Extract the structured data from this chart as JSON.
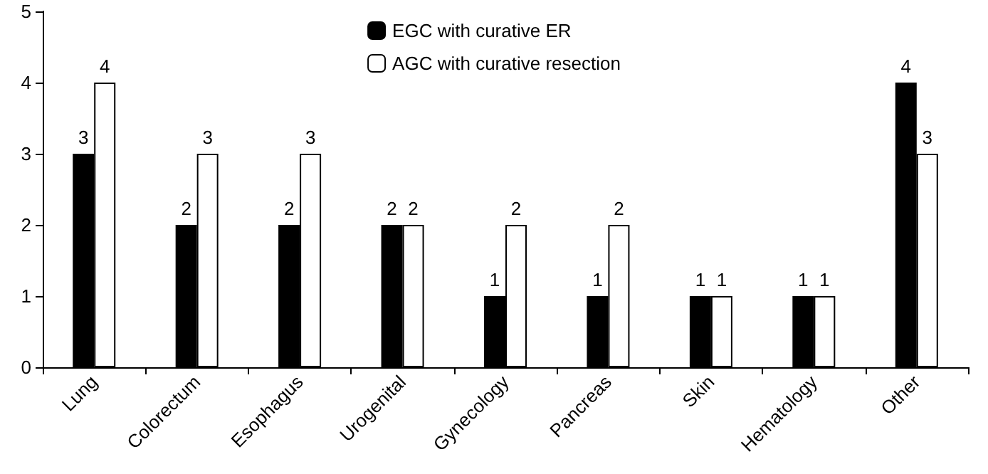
{
  "chart_data": {
    "type": "bar",
    "categories": [
      "Lung",
      "Colorectum",
      "Esophagus",
      "Urogenital",
      "Gynecology",
      "Pancreas",
      "Skin",
      "Hematology",
      "Other"
    ],
    "series": [
      {
        "name": "EGC with curative ER",
        "color": "#000000",
        "values": [
          3,
          2,
          2,
          2,
          1,
          1,
          1,
          1,
          4
        ]
      },
      {
        "name": "AGC with curative resection",
        "color": "#ffffff",
        "values": [
          4,
          3,
          3,
          2,
          2,
          2,
          1,
          1,
          3
        ]
      }
    ],
    "ylim": [
      0,
      5
    ],
    "yticks": [
      0,
      1,
      2,
      3,
      4,
      5
    ],
    "grid": false,
    "legend": "top",
    "data_labels": true
  }
}
